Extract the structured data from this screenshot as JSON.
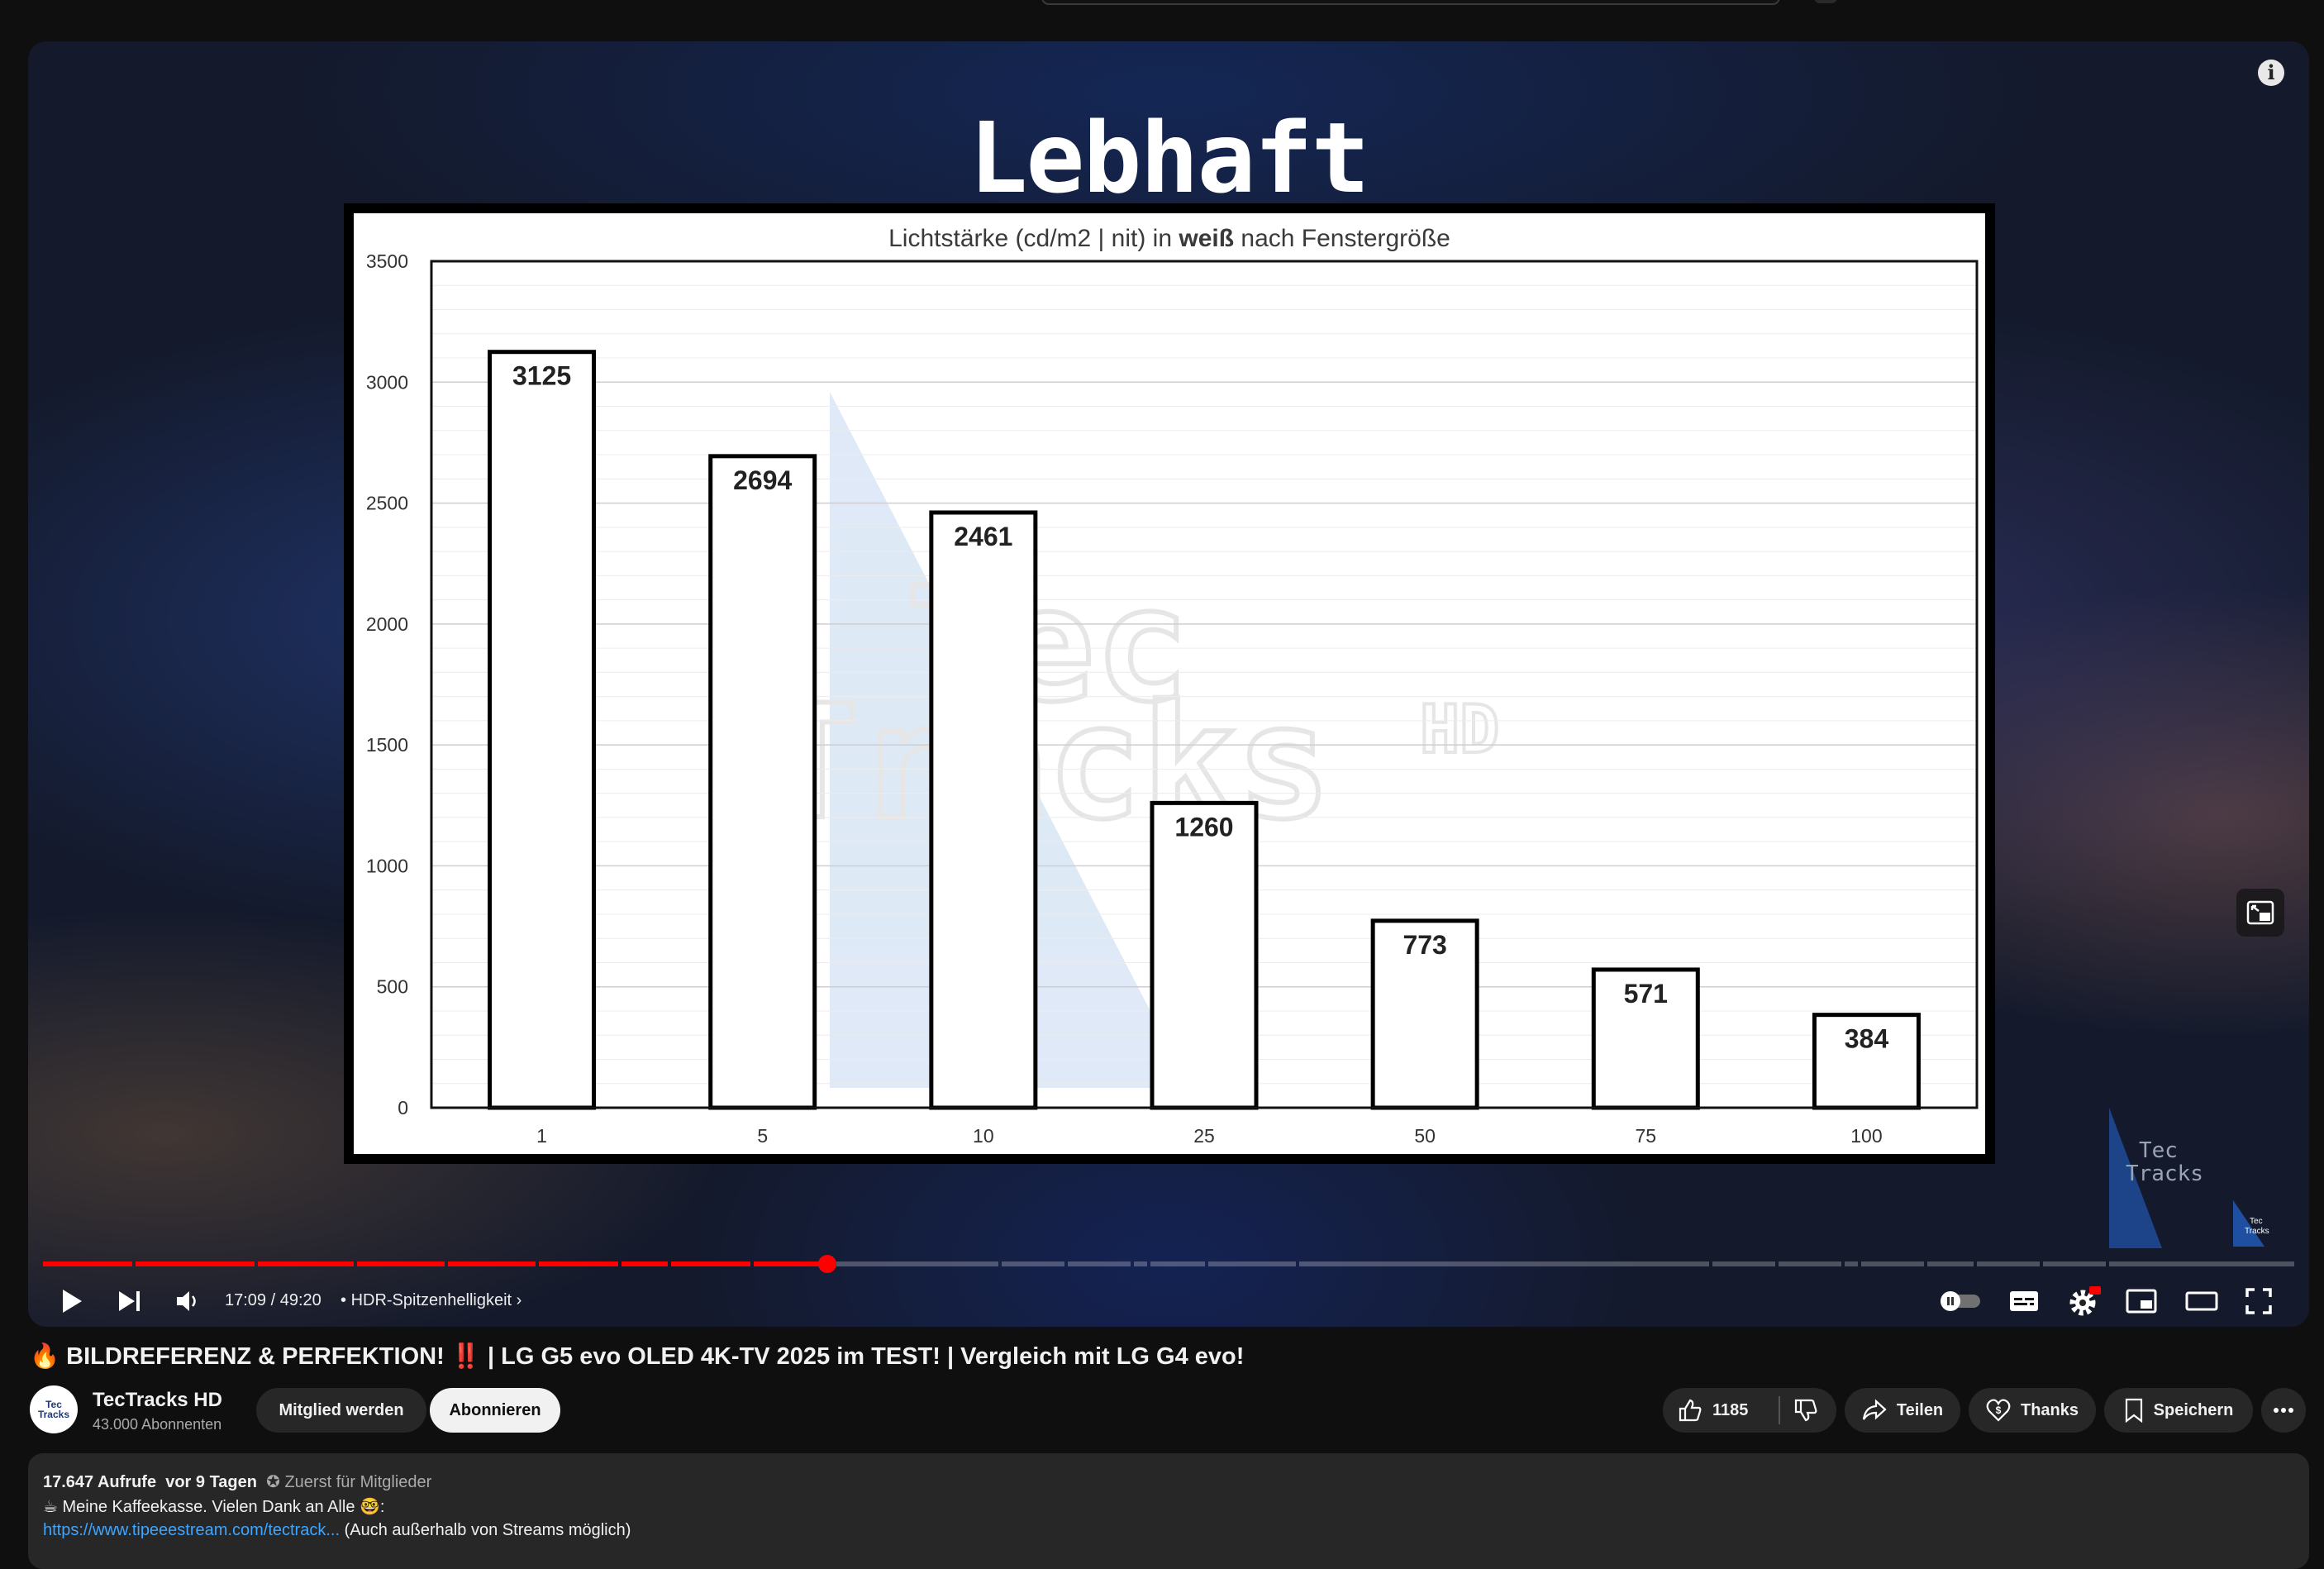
{
  "video": {
    "overlay_title": "Lebhaft",
    "time_current": "17:09",
    "time_total": "49:20",
    "chapter": "HDR-Spitzenhelligkeit",
    "played_fraction": 0.3485,
    "watermark_text": [
      "Tec",
      "Tracks",
      "HD"
    ]
  },
  "chart_data": {
    "type": "bar",
    "title_prefix": "Lichtstärke (cd/m2 | nit)  in ",
    "title_bold": "weiß",
    "title_suffix": " nach Fenstergröße",
    "categories": [
      "1",
      "5",
      "10",
      "25",
      "50",
      "75",
      "100"
    ],
    "values": [
      3125,
      2694,
      2461,
      1260,
      773,
      571,
      384
    ],
    "ylim": [
      0,
      3500
    ],
    "yticks": [
      0,
      500,
      1000,
      1500,
      2000,
      2500,
      3000,
      3500
    ],
    "grid": true,
    "legend": "none"
  },
  "page": {
    "title_emoji_left": "🔥",
    "title": "BILDREFERENZ & PERFEKTION! ‼️ | LG G5 evo OLED 4K-TV 2025 im TEST! | Vergleich mit LG G4 evo!",
    "channel_name": "TecTracks HD",
    "subscribers": "43.000 Abonnenten",
    "join_label": "Mitglied werden",
    "subscribe_label": "Abonnieren",
    "likes": "1185",
    "share_label": "Teilen",
    "thanks_label": "Thanks",
    "save_label": "Speichern",
    "avatar_text": "Tec Tracks"
  },
  "description": {
    "views": "17.647 Aufrufe",
    "age": "vor 9 Tagen",
    "members_first": "Zuerst für Mitglieder",
    "line2": "Meine Kaffeekasse. Vielen Dank an Alle 🤓:",
    "link": "https://www.tipeeestream.com/tectrack...",
    "link_suffix": " (Auch außerhalb von Streams möglich)"
  },
  "colors": {
    "accent_red": "#ff0000",
    "link_blue": "#3ea6ff",
    "chart_bar_fill": "#ffffff",
    "chart_bar_stroke": "#000000",
    "watermark_blue": "#cfe0f6"
  }
}
